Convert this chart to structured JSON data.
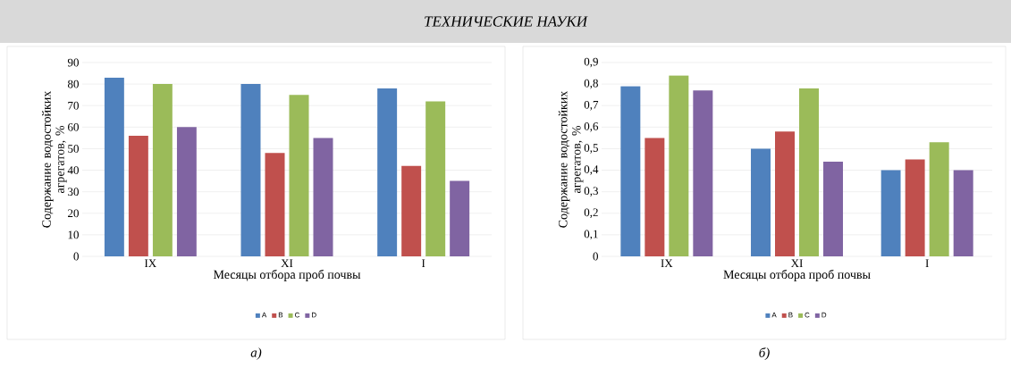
{
  "chart_data": [
    {
      "type": "bar",
      "title": "ТЕХНИЧЕСКИЕ НАУКИ",
      "ylabel": "Содержание водостойких агрегатов, %",
      "xlabel": "Месяцы отбора проб почвы",
      "annotations": [
        "а)"
      ],
      "categories": [
        "IX",
        "XI",
        "I"
      ],
      "series": [
        {
          "name": "A",
          "color": "#4f81bd",
          "values": [
            83,
            80,
            78
          ]
        },
        {
          "name": "B",
          "color": "#c0504d",
          "values": [
            56,
            48,
            42
          ]
        },
        {
          "name": "C",
          "color": "#9bbb59",
          "values": [
            80,
            75,
            72
          ]
        },
        {
          "name": "D",
          "color": "#8064a2",
          "values": [
            60,
            55,
            35
          ]
        }
      ],
      "ylim": [
        0,
        90
      ],
      "yticks": [
        0,
        10,
        20,
        30,
        40,
        50,
        60,
        70,
        80,
        90
      ],
      "grid": "y",
      "legend": "bottom"
    },
    {
      "type": "bar",
      "ylabel": "Содержание водостойких агрегатов, %",
      "xlabel": "Месяцы отбора проб почвы",
      "annotations": [
        "б)"
      ],
      "categories": [
        "IX",
        "XI",
        "I"
      ],
      "series": [
        {
          "name": "A",
          "color": "#4f81bd",
          "values": [
            0.79,
            0.5,
            0.4
          ]
        },
        {
          "name": "B",
          "color": "#c0504d",
          "values": [
            0.55,
            0.58,
            0.45
          ]
        },
        {
          "name": "C",
          "color": "#9bbb59",
          "values": [
            0.84,
            0.78,
            0.53
          ]
        },
        {
          "name": "D",
          "color": "#8064a2",
          "values": [
            0.77,
            0.44,
            0.4
          ]
        }
      ],
      "ylim": [
        0,
        0.9
      ],
      "yticks": [
        0,
        {
          "value": 0.1,
          "label": "0,1"
        },
        {
          "value": 0.2,
          "label": "0,2"
        },
        {
          "value": 0.3,
          "label": "0,3"
        },
        {
          "value": 0.4,
          "label": "0,4"
        },
        {
          "value": 0.5,
          "label": "0,5"
        },
        {
          "value": 0.6,
          "label": "0,6"
        },
        {
          "value": 0.7,
          "label": "0,7"
        },
        {
          "value": 0.8,
          "label": "0,8"
        },
        {
          "value": 0.9,
          "label": "0,9"
        }
      ],
      "grid": "y",
      "legend": "bottom"
    }
  ]
}
